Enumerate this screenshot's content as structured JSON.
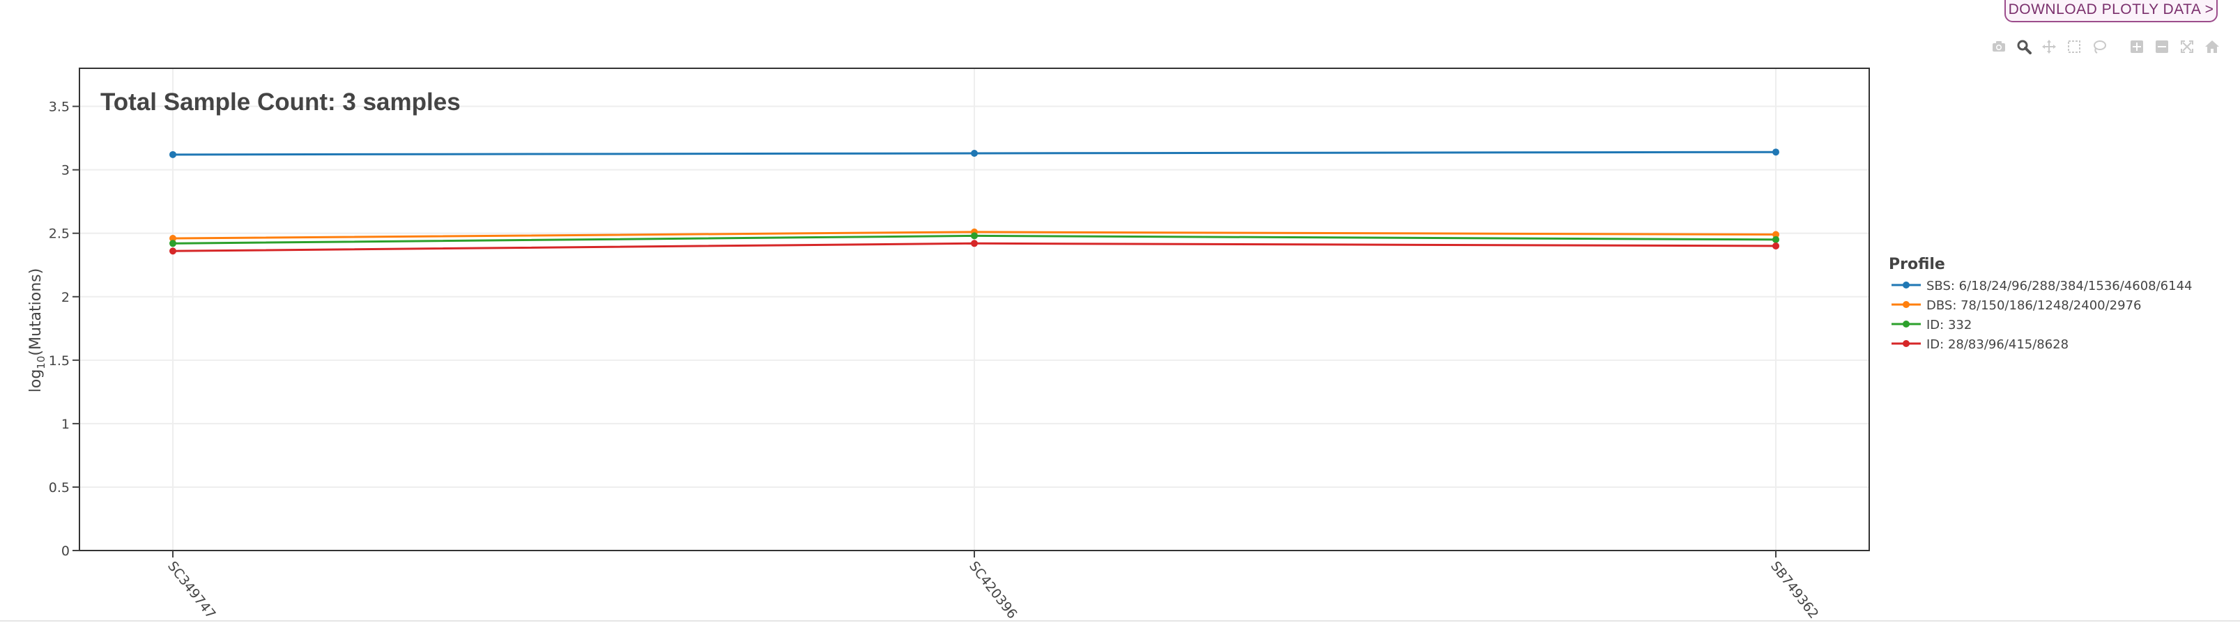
{
  "download_button": {
    "label": "DOWNLOAD PLOTLY DATA >"
  },
  "modebar": {
    "icons": [
      "camera-icon",
      "zoom-icon",
      "pan-icon",
      "box-select-icon",
      "lasso-select-icon",
      "zoom-in-icon",
      "zoom-out-icon",
      "autoscale-icon",
      "reset-axes-icon"
    ]
  },
  "colors": {
    "sbs": "#1f77b4",
    "dbs": "#ff7f0e",
    "id1": "#2ca02c",
    "id2": "#d62728"
  },
  "chart_data": {
    "type": "line",
    "annotation": "Total Sample Count: 3 samples",
    "ylabel_prefix": "log",
    "ylabel_subscript": "10",
    "ylabel_suffix": "(Mutations)",
    "ylim": [
      0,
      3.8
    ],
    "yticks": [
      0,
      0.5,
      1,
      1.5,
      2,
      2.5,
      3,
      3.5
    ],
    "ytick_labels": [
      "0",
      "0.5",
      "1",
      "1.5",
      "2",
      "2.5",
      "3",
      "3.5"
    ],
    "categories": [
      "SC349747",
      "SC420396",
      "SB749362"
    ],
    "grid": true,
    "legend_title": "Profile",
    "legend_position": "right",
    "series": [
      {
        "name": "SBS: 6/18/24/96/288/384/1536/4608/6144",
        "color": "#1f77b4",
        "values": [
          3.12,
          3.13,
          3.14
        ]
      },
      {
        "name": "DBS: 78/150/186/1248/2400/2976",
        "color": "#ff7f0e",
        "values": [
          2.46,
          2.51,
          2.49
        ]
      },
      {
        "name": "ID: 332",
        "color": "#2ca02c",
        "values": [
          2.42,
          2.48,
          2.45
        ]
      },
      {
        "name": "ID: 28/83/96/415/8628",
        "color": "#d62728",
        "values": [
          2.36,
          2.42,
          2.4
        ]
      }
    ]
  }
}
